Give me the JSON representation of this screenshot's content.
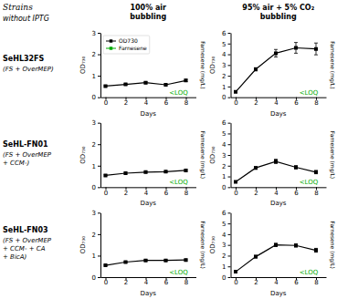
{
  "chart_data": [
    {
      "type": "line",
      "title": "100% air\nbubbling",
      "header": "Strains\nwithout IPTG",
      "row_label": [
        "SeHL32FS",
        "(FS + OverMEP)"
      ],
      "x": [
        0,
        2,
        4,
        6,
        8
      ],
      "xlim": [
        -0.5,
        9
      ],
      "xticks": [
        0,
        2,
        4,
        6,
        8
      ],
      "ylim": [
        0,
        3
      ],
      "yticks": [
        0,
        1,
        2,
        3
      ],
      "xlabel": "Days",
      "ylabel": "OD₇₃₀",
      "y2label": "Farnesene (mg/L)",
      "annotations": [
        {
          "text": "<LOQ",
          "color": "#00aa00"
        }
      ],
      "legend": "upper left",
      "series": [
        {
          "name": "OD730",
          "color": "black",
          "marker": "square",
          "values": [
            0.52,
            0.6,
            0.68,
            0.58,
            0.78
          ],
          "errors": [
            0.03,
            0.04,
            0.05,
            0.04,
            0.05
          ]
        },
        {
          "name": "Farnesene",
          "color": "#00aa00",
          "marker": "square",
          "values": [
            null,
            null,
            null,
            null,
            null
          ]
        }
      ]
    },
    {
      "type": "line",
      "title": "95% air + 5% CO₂\nbubbling",
      "x": [
        0,
        2,
        4,
        6,
        8
      ],
      "xlim": [
        -0.5,
        9
      ],
      "xticks": [
        0,
        2,
        4,
        6,
        8
      ],
      "ylim": [
        0,
        6
      ],
      "yticks": [
        0,
        1,
        2,
        3,
        4,
        5,
        6
      ],
      "xlabel": "Days",
      "ylabel": "OD₇₃₀",
      "y2label": "Farnesene (mg/L)",
      "annotations": [
        {
          "text": "<LOQ",
          "color": "#00aa00"
        }
      ],
      "series": [
        {
          "color": "black",
          "marker": "square",
          "values": [
            0.5,
            2.6,
            4.1,
            4.6,
            4.5
          ],
          "errors": [
            0.05,
            0.15,
            0.35,
            0.5,
            0.55
          ]
        }
      ]
    },
    {
      "type": "line",
      "row_label": [
        "SeHL-FN01",
        "(FS + OverMEP\n+ CCM-)"
      ],
      "x": [
        0,
        2,
        4,
        6,
        8
      ],
      "xlim": [
        -0.5,
        9
      ],
      "xticks": [
        0,
        2,
        4,
        6,
        8
      ],
      "ylim": [
        0,
        3
      ],
      "yticks": [
        0,
        1,
        2,
        3
      ],
      "xlabel": "Days",
      "ylabel": "OD₇₃₀",
      "y2label": "Farnesene (mg/L)",
      "annotations": [
        {
          "text": "<LOQ",
          "color": "#00aa00"
        }
      ],
      "series": [
        {
          "color": "black",
          "marker": "square",
          "values": [
            0.55,
            0.65,
            0.7,
            0.72,
            0.78
          ],
          "errors": [
            0.03,
            0.04,
            0.04,
            0.04,
            0.04
          ]
        }
      ]
    },
    {
      "type": "line",
      "x": [
        0,
        2,
        4,
        6,
        8
      ],
      "xlim": [
        -0.5,
        9
      ],
      "xticks": [
        0,
        2,
        4,
        6,
        8
      ],
      "ylim": [
        0,
        6
      ],
      "yticks": [
        0,
        1,
        2,
        3,
        4,
        5,
        6
      ],
      "xlabel": "Days",
      "ylabel": "OD₇₃₀",
      "y2label": "Farnesene (mg/L)",
      "annotations": [
        {
          "text": "<LOQ",
          "color": "#00aa00"
        }
      ],
      "series": [
        {
          "color": "black",
          "marker": "square",
          "values": [
            0.5,
            1.8,
            2.4,
            1.85,
            1.4
          ],
          "errors": [
            0.05,
            0.12,
            0.2,
            0.15,
            0.15
          ]
        }
      ]
    },
    {
      "type": "line",
      "row_label": [
        "SeHL-FN03",
        "(FS + OverMEP\n+ CCM- + CA\n+ BicA)"
      ],
      "x": [
        0,
        2,
        4,
        6,
        8
      ],
      "xlim": [
        -0.5,
        9
      ],
      "xticks": [
        0,
        2,
        4,
        6,
        8
      ],
      "ylim": [
        0,
        3
      ],
      "yticks": [
        0,
        1,
        2,
        3
      ],
      "xlabel": "Days",
      "ylabel": "OD₇₃₀",
      "y2label": "Farnesene (mg/L)",
      "annotations": [
        {
          "text": "<LOQ",
          "color": "#00aa00"
        }
      ],
      "series": [
        {
          "color": "black",
          "marker": "square",
          "values": [
            0.55,
            0.7,
            0.78,
            0.78,
            0.8
          ],
          "errors": [
            0.03,
            0.04,
            0.04,
            0.04,
            0.04
          ]
        }
      ]
    },
    {
      "type": "line",
      "x": [
        0,
        2,
        4,
        6,
        8
      ],
      "xlim": [
        -0.5,
        9
      ],
      "xticks": [
        0,
        2,
        4,
        6,
        8
      ],
      "ylim": [
        0,
        6
      ],
      "yticks": [
        0,
        1,
        2,
        3,
        4,
        5,
        6
      ],
      "xlabel": "Days",
      "ylabel": "OD₇₃₀",
      "y2label": "Farnesene (mg/L)",
      "annotations": [
        {
          "text": "<LOQ",
          "color": "#00aa00"
        }
      ],
      "series": [
        {
          "color": "black",
          "marker": "square",
          "values": [
            0.5,
            1.9,
            3.0,
            2.95,
            2.5
          ],
          "errors": [
            0.05,
            0.12,
            0.15,
            0.15,
            0.18
          ]
        }
      ]
    }
  ]
}
